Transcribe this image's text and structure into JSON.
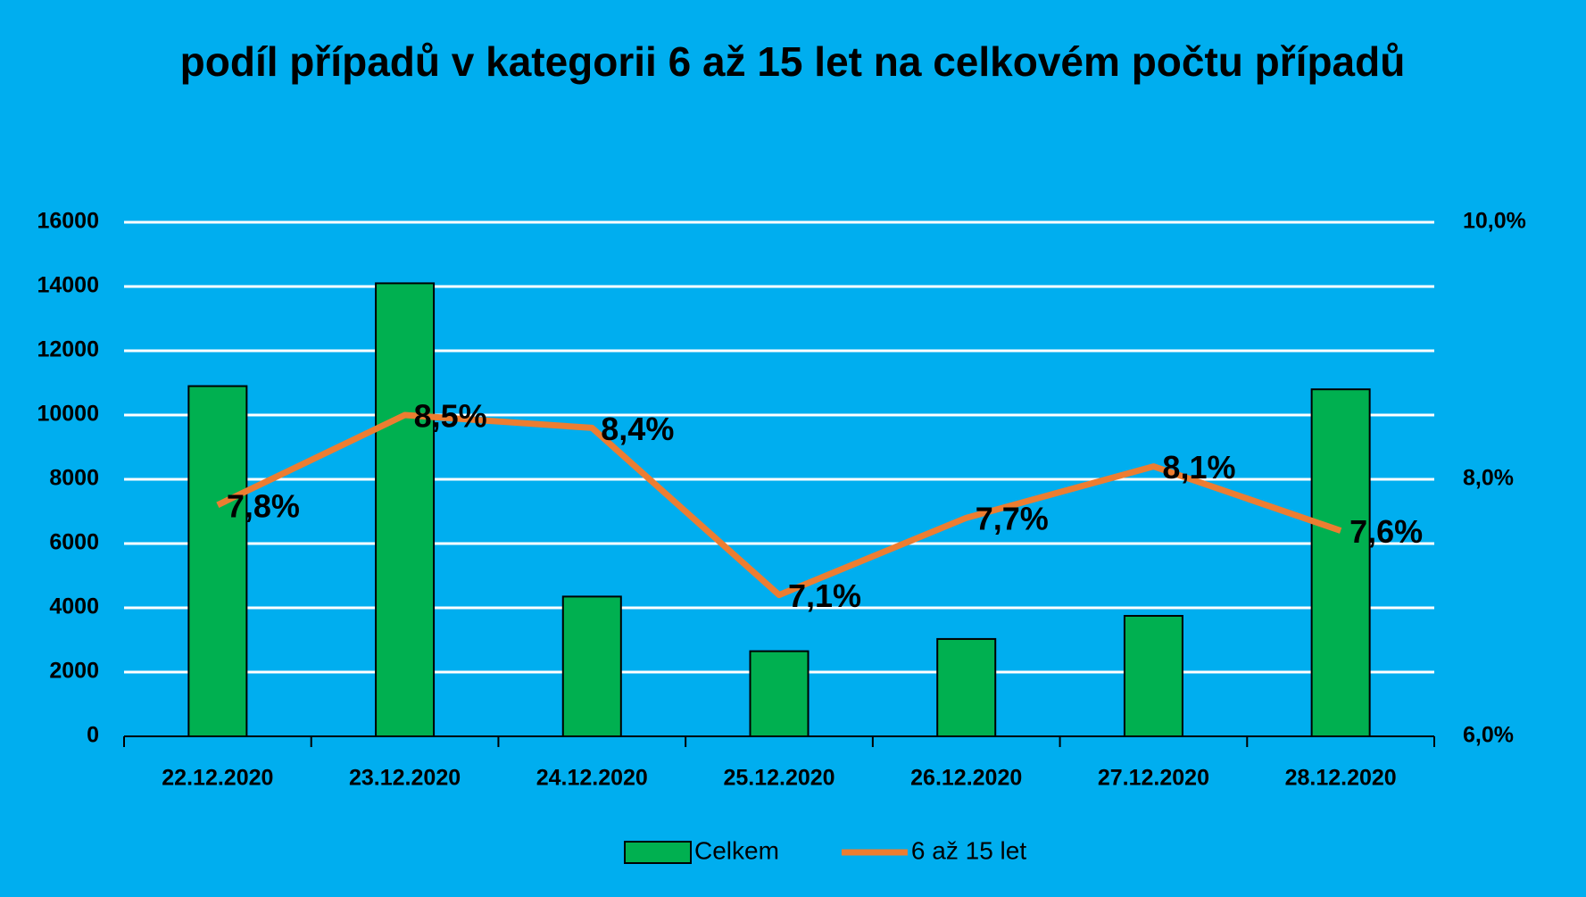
{
  "chart_data": {
    "type": "bar_line",
    "title": "podíl případů v kategorii 6 až 15 let na celkovém počtu případů",
    "categories": [
      "22.12.2020",
      "23.12.2020",
      "24.12.2020",
      "25.12.2020",
      "26.12.2020",
      "27.12.2020",
      "28.12.2020"
    ],
    "series": [
      {
        "name": "Celkem",
        "type": "bar",
        "color": "#00b050",
        "values": [
          10900,
          14100,
          4350,
          2650,
          3030,
          3750,
          10800
        ]
      },
      {
        "name": "6 až 15 let",
        "type": "line",
        "axis": "y2",
        "color": "#ed7d31",
        "values": [
          7.8,
          8.5,
          8.4,
          7.1,
          7.7,
          8.1,
          7.6
        ],
        "value_labels": [
          "7,8%",
          "8,5%",
          "8,4%",
          "7,1%",
          "7,7%",
          "8,1%",
          "7,6%"
        ]
      }
    ],
    "ylim": [
      0,
      16000
    ],
    "yticks": [
      0,
      2000,
      4000,
      6000,
      8000,
      10000,
      12000,
      14000,
      16000
    ],
    "y2lim": [
      6,
      10
    ],
    "y2ticks": [
      {
        "value": 6,
        "label": "6,0%"
      },
      {
        "value": 8,
        "label": "8,0%"
      },
      {
        "value": 10,
        "label": "10,0%"
      }
    ],
    "grid": true,
    "legend": "bottom"
  }
}
